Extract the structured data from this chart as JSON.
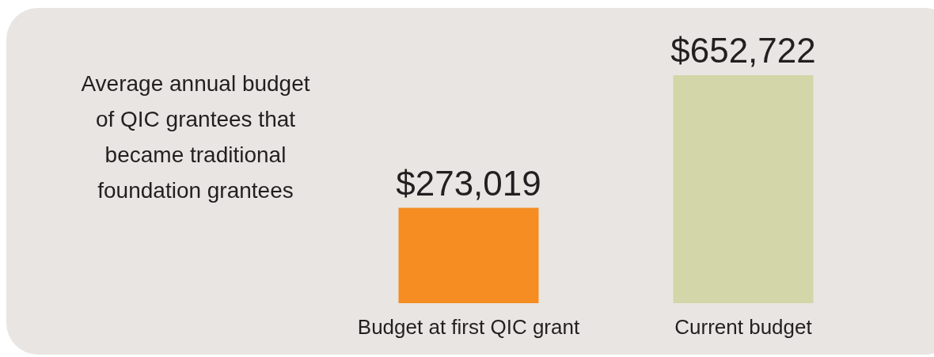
{
  "chart_data": {
    "type": "bar",
    "title": "Average annual budget of QIC grantees that became traditional foundation grantees",
    "categories": [
      "Budget at first QIC grant",
      "Current budget"
    ],
    "values": [
      273019,
      652722
    ],
    "colors": [
      "#f58d22",
      "#d3d6a8"
    ],
    "value_labels": [
      "$273,019",
      "$652,722"
    ]
  }
}
